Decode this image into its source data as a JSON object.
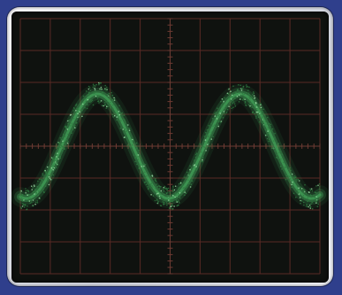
{
  "display": {
    "type": "oscilloscope-screen",
    "grid_divisions": {
      "x": 10,
      "y": 8
    },
    "waveform": "sine",
    "cycles_visible": 2.1,
    "trace_color": "#3f9a55",
    "grid_color": "#5a2a25",
    "center_axis_color": "#6e3b33",
    "screen_color": "#0f120f",
    "bezel_color": "#e8e9ee",
    "background_color": "#2f3f8c"
  }
}
